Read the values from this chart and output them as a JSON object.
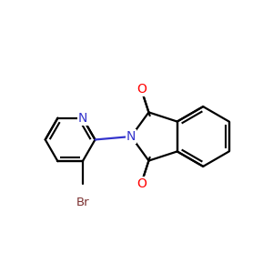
{
  "background": "#ffffff",
  "bond_color": "#000000",
  "n_color": "#3333cc",
  "o_color": "#ff0000",
  "br_color": "#7b3030",
  "bond_width": 1.6,
  "figsize": [
    3.0,
    3.0
  ],
  "dpi": 100,
  "xlim": [
    0,
    10
  ],
  "ylim": [
    0,
    10
  ]
}
